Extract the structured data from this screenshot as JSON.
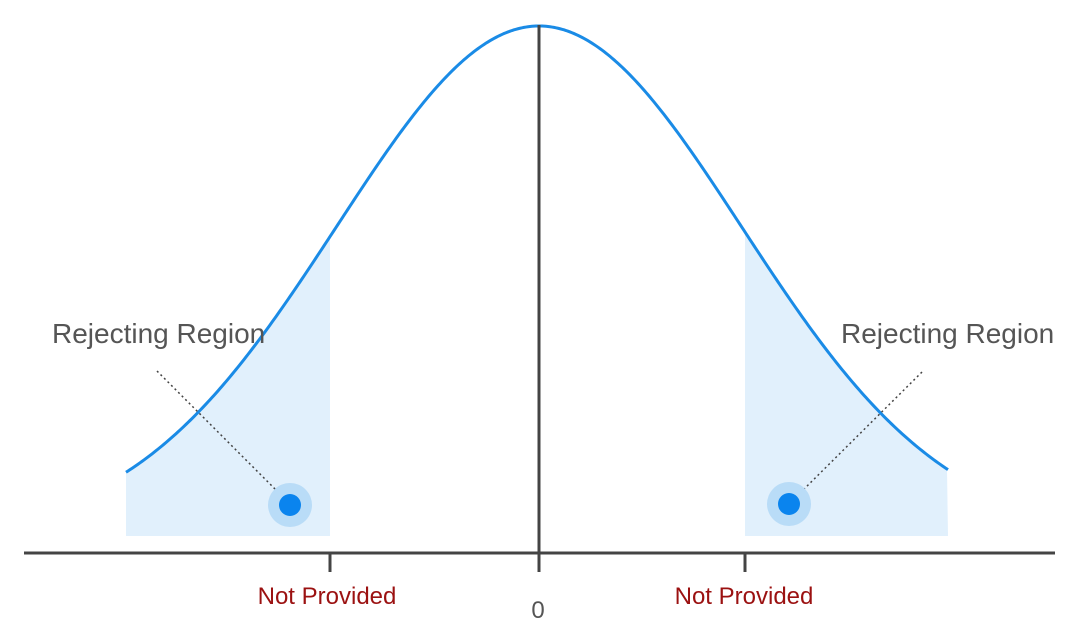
{
  "colors": {
    "curve": "#1a8be6",
    "shade": "#e1f0fc",
    "axis": "#444444",
    "marker": "#0a84ee",
    "marker_halo": "#b9dcf7",
    "label_text": "#555555",
    "critical_text": "#9b1111",
    "leader_line": "#444444"
  },
  "diagram": {
    "left_region": {
      "label": "Rejecting Region"
    },
    "right_region": {
      "label": "Rejecting Region"
    },
    "left_critical_value": "Not Provided",
    "right_critical_value": "Not Provided",
    "center_value": "0"
  }
}
